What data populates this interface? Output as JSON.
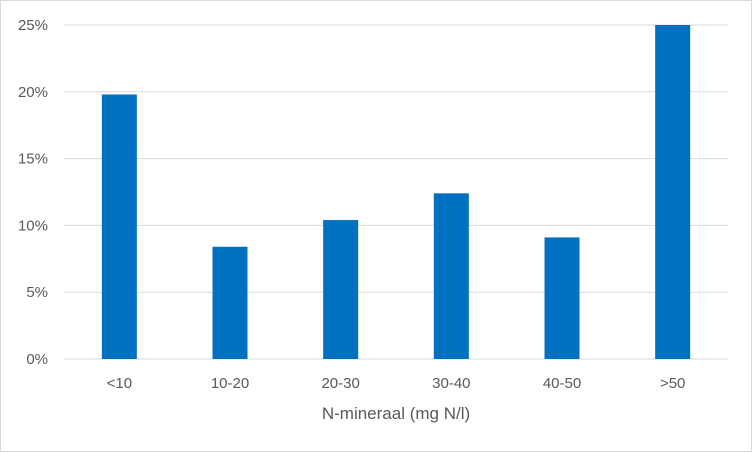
{
  "chart_data": {
    "type": "bar",
    "title": "",
    "xlabel": "N-mineraal (mg N/l)",
    "ylabel": "",
    "categories": [
      "<10",
      "10-20",
      "20-30",
      "30-40",
      "40-50",
      ">50"
    ],
    "values": [
      19.8,
      8.4,
      10.4,
      12.4,
      9.1,
      25.0
    ],
    "ylim": [
      0,
      25
    ],
    "yticks": [
      0,
      5,
      10,
      15,
      20,
      25
    ],
    "ytick_labels": [
      "0%",
      "5%",
      "10%",
      "15%",
      "20%",
      "25%"
    ],
    "grid": true,
    "legend": "none",
    "bar_color": "#0070c0",
    "grid_color": "#d9d9d9"
  }
}
